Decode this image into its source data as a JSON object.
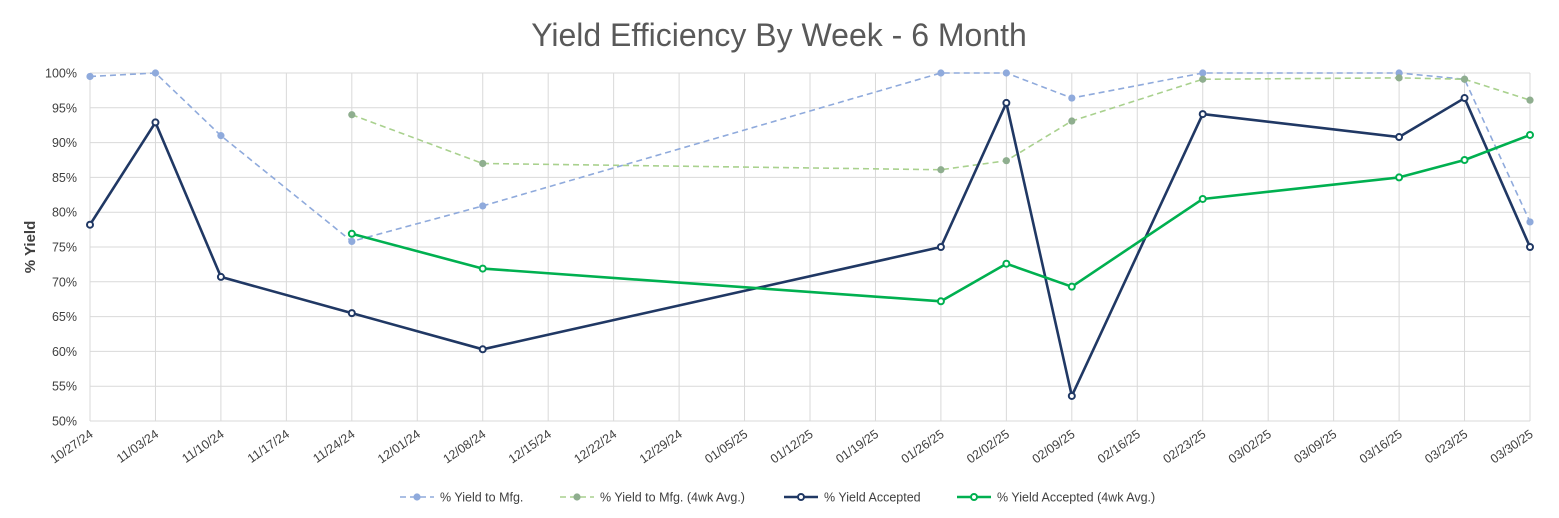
{
  "chart_data": {
    "type": "line",
    "title": "Yield Efficiency By Week - 6 Month",
    "ylabel": "% Yield",
    "xlabel": "",
    "ylim": [
      50,
      100
    ],
    "y_ticks": [
      "50%",
      "55%",
      "60%",
      "65%",
      "70%",
      "75%",
      "80%",
      "85%",
      "90%",
      "95%",
      "100%"
    ],
    "categories": [
      "10/27/24",
      "11/03/24",
      "11/10/24",
      "11/17/24",
      "11/24/24",
      "12/01/24",
      "12/08/24",
      "12/15/24",
      "12/22/24",
      "12/29/24",
      "01/05/25",
      "01/12/25",
      "01/19/25",
      "01/26/25",
      "02/02/25",
      "02/09/25",
      "02/16/25",
      "02/23/25",
      "03/02/25",
      "03/09/25",
      "03/16/25",
      "03/23/25",
      "03/30/25"
    ],
    "grid": true,
    "legend_position": "bottom",
    "series": [
      {
        "name": "% Yield to Mfg.",
        "color": "#8faadc",
        "dashed": true,
        "marker": "filled",
        "points": [
          [
            0,
            99.5
          ],
          [
            1,
            100
          ],
          [
            2,
            91
          ],
          [
            4,
            75.8
          ],
          [
            6,
            80.9
          ],
          [
            13,
            100
          ],
          [
            14,
            100
          ],
          [
            15,
            96.4
          ],
          [
            17,
            100
          ],
          [
            20,
            100
          ],
          [
            21,
            99.1
          ],
          [
            22,
            78.6
          ]
        ]
      },
      {
        "name": "% Yield to Mfg. (4wk Avg.)",
        "color": "#a9d18e",
        "marker_color": "#8fae8f",
        "dashed": true,
        "marker": "filled",
        "points": [
          [
            4,
            94
          ],
          [
            6,
            87
          ],
          [
            13,
            86.1
          ],
          [
            14,
            87.4
          ],
          [
            15,
            93.1
          ],
          [
            17,
            99.1
          ],
          [
            20,
            99.3
          ],
          [
            21,
            99.1
          ],
          [
            22,
            96.1
          ]
        ]
      },
      {
        "name": "% Yield Accepted",
        "color": "#203864",
        "dashed": false,
        "marker": "hollow",
        "points": [
          [
            0,
            78.2
          ],
          [
            1,
            92.9
          ],
          [
            2,
            70.7
          ],
          [
            4,
            65.5
          ],
          [
            6,
            60.3
          ],
          [
            13,
            75
          ],
          [
            14,
            95.7
          ],
          [
            15,
            53.6
          ],
          [
            17,
            94.1
          ],
          [
            20,
            90.8
          ],
          [
            21,
            96.4
          ],
          [
            22,
            75
          ]
        ]
      },
      {
        "name": "% Yield Accepted (4wk Avg.)",
        "color": "#00b050",
        "dashed": false,
        "marker": "hollow",
        "points": [
          [
            4,
            76.9
          ],
          [
            6,
            71.9
          ],
          [
            13,
            67.2
          ],
          [
            14,
            72.6
          ],
          [
            15,
            69.3
          ],
          [
            17,
            81.9
          ],
          [
            20,
            85
          ],
          [
            21,
            87.5
          ],
          [
            22,
            91.1
          ]
        ]
      }
    ]
  }
}
